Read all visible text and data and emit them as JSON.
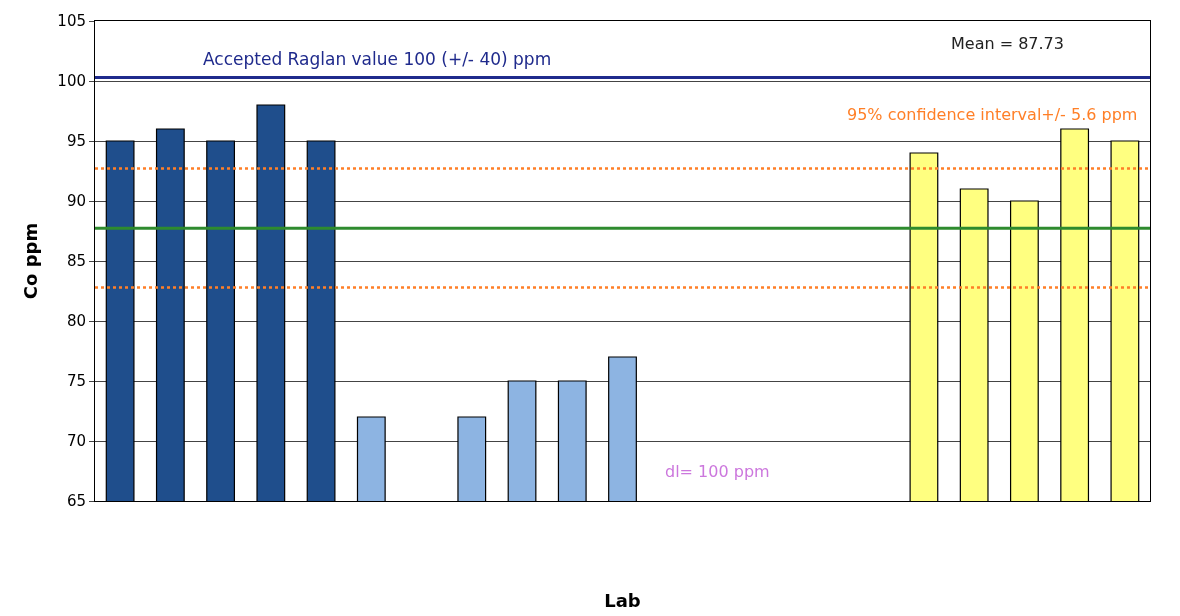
{
  "chart_data": {
    "type": "bar",
    "xlabel": "Lab",
    "ylabel": "Co ppm",
    "categories": [
      null,
      null,
      null,
      null,
      null,
      null,
      null,
      null,
      null,
      null,
      null,
      null,
      null,
      null,
      null,
      null,
      null,
      null,
      null,
      null,
      null
    ],
    "values": [
      95,
      96,
      95,
      98,
      95,
      72,
      null,
      72,
      75,
      75,
      77,
      null,
      null,
      null,
      null,
      null,
      94,
      91,
      90,
      96,
      95
    ],
    "colors": [
      "#1f4e8c",
      "#1f4e8c",
      "#1f4e8c",
      "#1f4e8c",
      "#1f4e8c",
      "#8db4e2",
      "#8db4e2",
      "#8db4e2",
      "#8db4e2",
      "#8db4e2",
      "#8db4e2",
      "#8db4e2",
      "#8db4e2",
      "#8db4e2",
      "#8db4e2",
      "#8db4e2",
      "#ffff80",
      "#ffff80",
      "#ffff80",
      "#ffff80",
      "#ffff80"
    ],
    "ylim": [
      65,
      105
    ],
    "yticks": [
      65,
      70,
      75,
      80,
      85,
      90,
      95,
      100,
      105
    ],
    "grid": "y",
    "ref_lines": [
      {
        "axis": "y",
        "value": 100.3,
        "label": "Accepted Raglan value 100 (+/- 40) ppm",
        "color": "#1f2a8c",
        "line_style": "solid"
      },
      {
        "axis": "y",
        "value": 87.73,
        "label": null,
        "color": "#2e8b2e",
        "line_style": "solid"
      },
      {
        "axis": "y",
        "value": 92.7,
        "label": null,
        "color": "#ff7f27",
        "line_style": "dotted"
      },
      {
        "axis": "y",
        "value": 82.8,
        "label": null,
        "color": "#ff7f27",
        "line_style": "dotted"
      }
    ],
    "annotations": [
      "Mean = 87.73",
      "95% confidence interval+/- 5.6 ppm",
      "dl= 100 ppm"
    ]
  }
}
